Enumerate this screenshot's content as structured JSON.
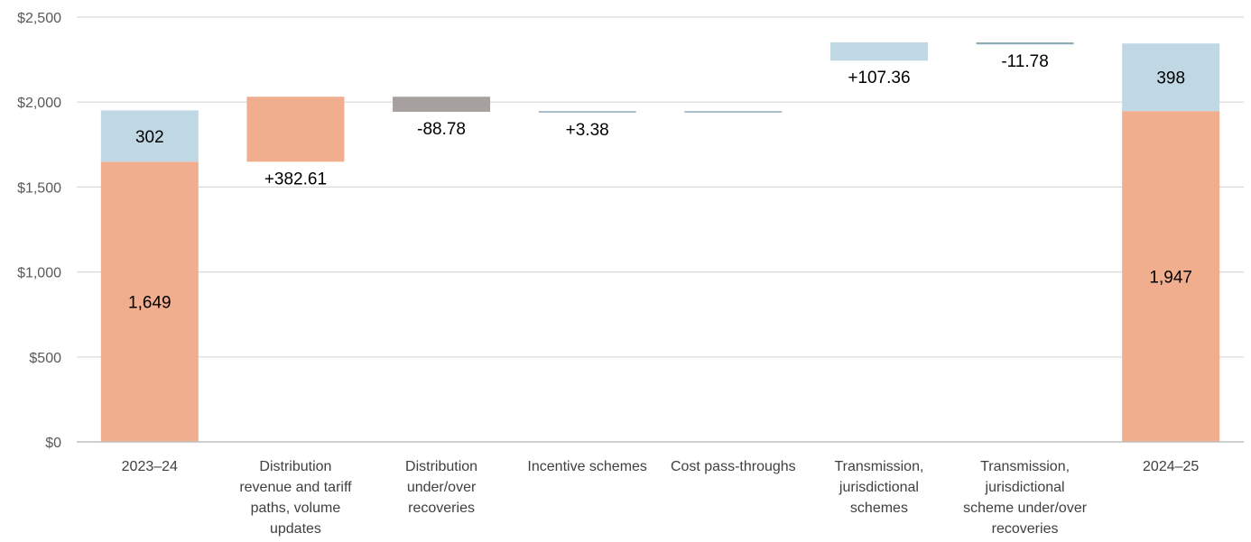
{
  "chart_data": {
    "type": "bar",
    "subtype": "waterfall",
    "title": "",
    "xlabel": "",
    "ylabel": "",
    "ylim": [
      0,
      2500
    ],
    "yticks": [
      0,
      500,
      1000,
      1500,
      2000,
      2500
    ],
    "ytick_labels": [
      "$0",
      "$500",
      "$1,000",
      "$1,500",
      "$2,000",
      "$2,500"
    ],
    "grid": true,
    "legend": "none",
    "colors": {
      "distribution": "#F0AE8F",
      "transmission": "#C0D7E4",
      "decrease": "#A6A19E",
      "small_change": "#8FAAB8",
      "gridline": "#D9D9D9",
      "axis": "#BFBFBF"
    },
    "categories": [
      {
        "label": [
          "2023–24"
        ],
        "kind": "total",
        "segments": [
          {
            "part": "distribution",
            "value": 1649,
            "text": "1,649"
          },
          {
            "part": "transmission",
            "value": 302,
            "text": "302"
          }
        ]
      },
      {
        "label": [
          "Distribution",
          "revenue and tariff",
          "paths, volume",
          "updates"
        ],
        "kind": "change",
        "part": "distribution",
        "color": "distribution",
        "start": 1649,
        "end": 2031.61,
        "text": "+382.61",
        "label_pos": "below"
      },
      {
        "label": [
          "Distribution",
          "under/over",
          "recoveries"
        ],
        "kind": "change",
        "part": "distribution",
        "color": "decrease",
        "start": 2031.61,
        "end": 1942.83,
        "text": "-88.78",
        "label_pos": "below"
      },
      {
        "label": [
          "Incentive schemes"
        ],
        "kind": "change",
        "part": "distribution",
        "color": "small_change",
        "start": 1942.83,
        "end": 1946.21,
        "text": "+3.38",
        "label_pos": "below"
      },
      {
        "label": [
          "Cost pass-throughs"
        ],
        "kind": "change",
        "part": "distribution",
        "color": "small_change",
        "start": 1946.21,
        "end": 1946.21,
        "text": "",
        "label_pos": "below"
      },
      {
        "label": [
          "Transmission,",
          "jurisdictional",
          "schemes"
        ],
        "kind": "change",
        "part": "transmission",
        "color": "transmission",
        "start": 2244,
        "end": 2351.36,
        "text": "+107.36",
        "label_pos": "below"
      },
      {
        "label": [
          "Transmission,",
          "jurisdictional",
          "scheme under/over",
          "recoveries"
        ],
        "kind": "change",
        "part": "transmission",
        "color": "small_change",
        "start": 2351.36,
        "end": 2339.58,
        "text": "-11.78",
        "label_pos": "below"
      },
      {
        "label": [
          "2024–25"
        ],
        "kind": "total",
        "segments": [
          {
            "part": "distribution",
            "value": 1947,
            "text": "1,947"
          },
          {
            "part": "transmission",
            "value": 398,
            "text": "398"
          }
        ]
      }
    ]
  }
}
